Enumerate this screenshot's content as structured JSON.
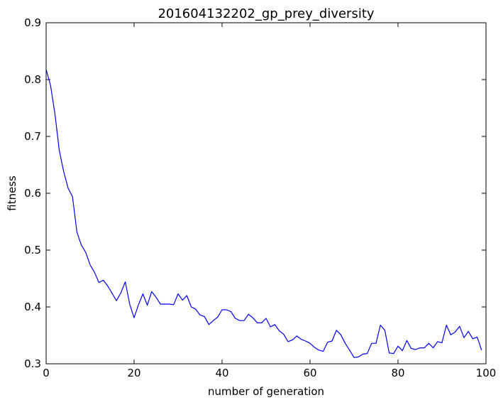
{
  "chart_data": {
    "type": "line",
    "title": "201604132202_gp_prey_diversity",
    "xlabel": "number of generation",
    "ylabel": "fitness",
    "xlim": [
      0,
      100
    ],
    "ylim": [
      0.3,
      0.9
    ],
    "xticks": [
      0,
      20,
      40,
      60,
      80,
      100
    ],
    "xtick_labels": [
      "0",
      "20",
      "40",
      "60",
      "80",
      "100"
    ],
    "yticks": [
      0.3,
      0.4,
      0.5,
      0.6,
      0.7,
      0.8,
      0.9
    ],
    "ytick_labels": [
      "0.3",
      "0.4",
      "0.5",
      "0.6",
      "0.7",
      "0.8",
      "0.9"
    ],
    "grid": false,
    "legend": "none",
    "series": [
      {
        "color": "#0000ff",
        "x": [
          0,
          1,
          2,
          3,
          4,
          5,
          6,
          7,
          8,
          9,
          10,
          11,
          12,
          13,
          14,
          15,
          16,
          17,
          18,
          19,
          20,
          21,
          22,
          23,
          24,
          25,
          26,
          27,
          28,
          29,
          30,
          31,
          32,
          33,
          34,
          35,
          36,
          37,
          38,
          39,
          40,
          41,
          42,
          43,
          44,
          45,
          46,
          47,
          48,
          49,
          50,
          51,
          52,
          53,
          54,
          55,
          56,
          57,
          58,
          59,
          60,
          61,
          62,
          63,
          64,
          65,
          66,
          67,
          68,
          69,
          70,
          71,
          72,
          73,
          74,
          75,
          76,
          77,
          78,
          79,
          80,
          81,
          82,
          83,
          84,
          85,
          86,
          87,
          88,
          89,
          90,
          91,
          92,
          93,
          94,
          95,
          96,
          97,
          98,
          99
        ],
        "y": [
          0.818,
          0.79,
          0.74,
          0.675,
          0.638,
          0.609,
          0.594,
          0.532,
          0.509,
          0.496,
          0.474,
          0.461,
          0.443,
          0.447,
          0.437,
          0.424,
          0.411,
          0.425,
          0.444,
          0.405,
          0.381,
          0.404,
          0.423,
          0.403,
          0.427,
          0.417,
          0.405,
          0.405,
          0.405,
          0.404,
          0.423,
          0.412,
          0.42,
          0.4,
          0.396,
          0.386,
          0.383,
          0.369,
          0.376,
          0.382,
          0.395,
          0.395,
          0.392,
          0.38,
          0.376,
          0.376,
          0.387,
          0.381,
          0.372,
          0.372,
          0.38,
          0.365,
          0.369,
          0.358,
          0.352,
          0.339,
          0.342,
          0.349,
          0.343,
          0.34,
          0.336,
          0.329,
          0.324,
          0.322,
          0.338,
          0.34,
          0.359,
          0.351,
          0.336,
          0.324,
          0.311,
          0.312,
          0.317,
          0.318,
          0.336,
          0.336,
          0.368,
          0.359,
          0.319,
          0.318,
          0.331,
          0.323,
          0.341,
          0.327,
          0.325,
          0.328,
          0.328,
          0.336,
          0.328,
          0.339,
          0.337,
          0.368,
          0.351,
          0.356,
          0.366,
          0.346,
          0.357,
          0.344,
          0.347,
          0.324
        ]
      }
    ]
  }
}
